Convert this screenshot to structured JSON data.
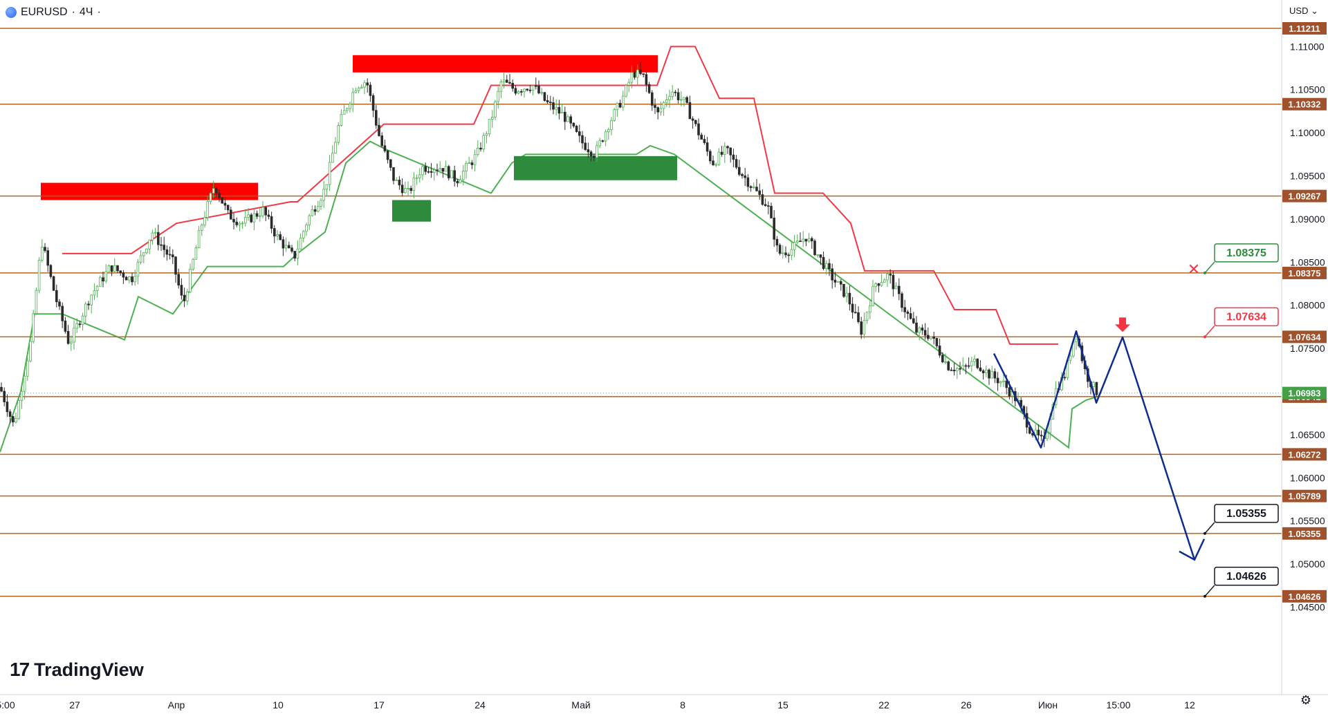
{
  "header": {
    "symbol": "EURUSD",
    "interval": "4Ч",
    "separator": "·"
  },
  "currency_label": "USD",
  "logo_text": "TradingView",
  "colors": {
    "level_line": "#b5651d",
    "level_label_bg": "#a0522d",
    "resistance_zone": "#ff0000",
    "support_zone": "#2e8b3c",
    "trail_down": "#f23645",
    "trail_up": "#4caf50",
    "forecast_path": "#0d2c8c",
    "tag_green": "#2e8b3c",
    "tag_red": "#f23645"
  },
  "chart_data": {
    "type": "candlestick",
    "ylim": [
      1.04403,
      1.11566
    ],
    "y_ticks": [
      "1.11000",
      "1.10500",
      "1.10000",
      "1.09500",
      "1.09000",
      "1.08500",
      "1.08000",
      "1.07500",
      "1.06500",
      "1.06000",
      "1.05500",
      "1.05000",
      "1.04500"
    ],
    "x_ticks": [
      "5:00",
      "27",
      "Апр",
      "10",
      "17",
      "24",
      "Май",
      "8",
      "15",
      "22",
      "26",
      "Июн",
      "15:00",
      "12"
    ],
    "current_price": "1.06983",
    "levels": [
      {
        "value": 1.11211,
        "label": "1.11211"
      },
      {
        "value": 1.10332,
        "label": "1.10332"
      },
      {
        "value": 1.09267,
        "label": "1.09267"
      },
      {
        "value": 1.08375,
        "label": "1.08375"
      },
      {
        "value": 1.07634,
        "label": "1.07634"
      },
      {
        "value": 1.06941,
        "label": "1.06941"
      },
      {
        "value": 1.06272,
        "label": "1.06272"
      },
      {
        "value": 1.05789,
        "label": "1.05789"
      },
      {
        "value": 1.05355,
        "label": "1.05355"
      },
      {
        "value": 1.04626,
        "label": "1.04626"
      }
    ],
    "annotations": [
      {
        "label": "1.08375",
        "price": 1.08375,
        "style": "green",
        "marker": "cross"
      },
      {
        "label": "1.07634",
        "price": 1.07634,
        "style": "red",
        "marker": "arrow-down"
      },
      {
        "label": "1.05355",
        "price": 1.05355,
        "style": "black"
      },
      {
        "label": "1.04626",
        "price": 1.04626,
        "style": "black"
      }
    ],
    "resistance_zones": [
      {
        "price_top": 1.0942,
        "price_bottom": 1.0922
      },
      {
        "price_top": 1.109,
        "price_bottom": 1.107
      }
    ],
    "support_zones": [
      {
        "price_top": 1.0922,
        "price_bottom": 1.0897
      },
      {
        "price_top": 1.0973,
        "price_bottom": 1.0945
      }
    ],
    "forecast_path": [
      {
        "price": 1.0744
      },
      {
        "price": 1.0635
      },
      {
        "price": 1.077
      },
      {
        "price": 1.0687
      },
      {
        "price": 1.0763
      },
      {
        "price": 1.0505
      }
    ]
  }
}
